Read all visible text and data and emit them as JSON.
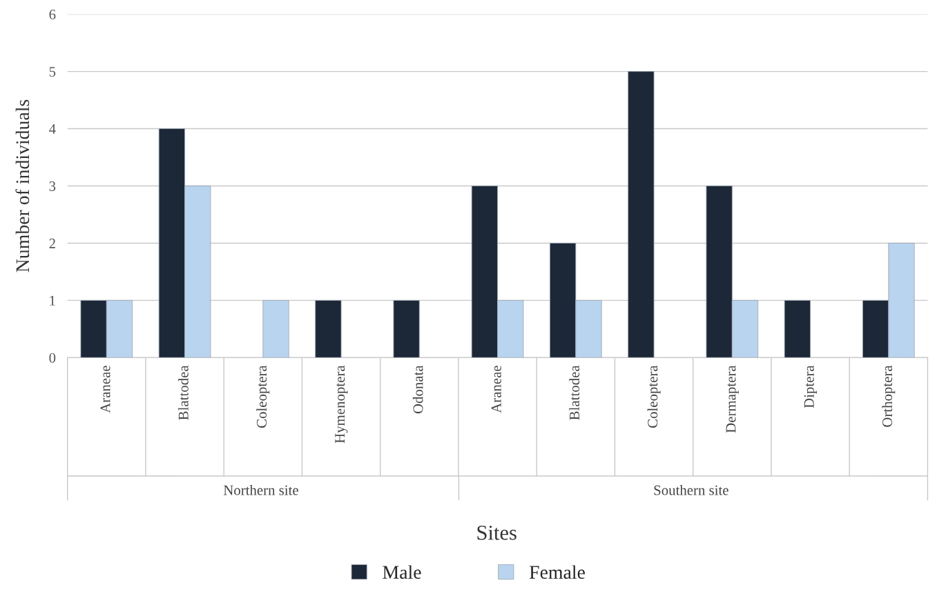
{
  "chart_data": {
    "type": "bar",
    "categories": [
      "Araneae",
      "Blattodea",
      "Coleoptera",
      "Hymenoptera",
      "Odonata",
      "Araneae",
      "Blattodea",
      "Coleoptera",
      "Dermaptera",
      "Diptera",
      "Orthoptera"
    ],
    "series": [
      {
        "name": "Male",
        "color": "#1c2838",
        "values": [
          1,
          4,
          null,
          1,
          1,
          3,
          2,
          5,
          3,
          1,
          1
        ]
      },
      {
        "name": "Female",
        "color": "#b8d4ee",
        "values": [
          1,
          3,
          1,
          null,
          null,
          1,
          1,
          null,
          1,
          null,
          2
        ]
      }
    ],
    "xlabel": "Sites",
    "ylabel": "Number of individuals",
    "annotations": [
      "Northern site",
      "Southern site"
    ],
    "ylim": [
      0,
      6
    ],
    "yticks": [
      0,
      1,
      2,
      3,
      4,
      5,
      6
    ],
    "grid": "y",
    "legend": "bottom"
  }
}
